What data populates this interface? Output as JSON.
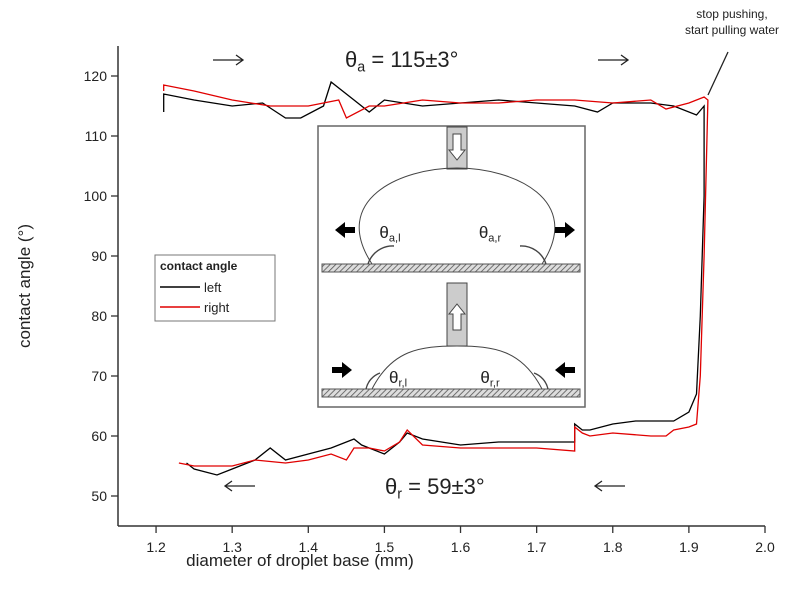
{
  "chart_data": {
    "type": "line",
    "x_label": "diameter of droplet base (mm)",
    "y_label": "contact angle (°)",
    "xlim": [
      1.15,
      2.0
    ],
    "ylim": [
      45,
      125
    ],
    "xticks": [
      1.2,
      1.3,
      1.4,
      1.5,
      1.6,
      1.7,
      1.8,
      1.9,
      {
        "value": 2,
        "label": "2.0"
      }
    ],
    "yticks": [
      50,
      60,
      70,
      80,
      90,
      100,
      110,
      120
    ],
    "legend": {
      "title": "contact angle",
      "position": "left"
    },
    "series": [
      {
        "name": "left",
        "color": "#000000",
        "x": [
          1.21,
          1.21,
          1.25,
          1.3,
          1.34,
          1.37,
          1.39,
          1.42,
          1.43,
          1.46,
          1.48,
          1.5,
          1.55,
          1.6,
          1.65,
          1.7,
          1.75,
          1.78,
          1.8,
          1.85,
          1.88,
          1.91,
          1.92,
          1.92,
          1.915,
          1.91,
          1.9,
          1.88,
          1.83,
          1.8,
          1.77,
          1.76,
          1.75,
          1.75,
          1.7,
          1.65,
          1.6,
          1.55,
          1.53,
          1.52,
          1.5,
          1.47,
          1.46,
          1.43,
          1.4,
          1.37,
          1.35,
          1.33,
          1.3,
          1.28,
          1.25,
          1.24
        ],
        "values": [
          114,
          117,
          116,
          115,
          115.5,
          113,
          113,
          115,
          119,
          116,
          114,
          116,
          115,
          115.5,
          116,
          115.5,
          115,
          114,
          115.5,
          115.5,
          115,
          113.5,
          115,
          100,
          80,
          67,
          64,
          62.5,
          62.5,
          62,
          61,
          61,
          62,
          59,
          59,
          59,
          58.5,
          59.5,
          60.5,
          59,
          57,
          58.5,
          59.5,
          58,
          57,
          56,
          58,
          56,
          54.5,
          53.5,
          54.5,
          55.5
        ]
      },
      {
        "name": "right",
        "color": "#e00000",
        "x": [
          1.21,
          1.21,
          1.25,
          1.3,
          1.35,
          1.4,
          1.44,
          1.45,
          1.48,
          1.5,
          1.55,
          1.6,
          1.65,
          1.7,
          1.75,
          1.8,
          1.85,
          1.87,
          1.9,
          1.92,
          1.925,
          1.92,
          1.915,
          1.91,
          1.9,
          1.88,
          1.87,
          1.85,
          1.8,
          1.77,
          1.76,
          1.75,
          1.75,
          1.7,
          1.6,
          1.55,
          1.53,
          1.52,
          1.5,
          1.48,
          1.46,
          1.45,
          1.43,
          1.4,
          1.37,
          1.33,
          1.3,
          1.25,
          1.23
        ],
        "values": [
          117.5,
          118.5,
          117.5,
          116,
          115,
          115,
          116,
          113,
          115,
          115,
          116,
          115.5,
          115.5,
          116,
          116,
          115.5,
          116,
          114.5,
          115.5,
          116.5,
          116,
          90,
          70,
          62,
          61.5,
          61,
          60,
          60,
          60.5,
          60,
          60.5,
          61.5,
          57.5,
          58,
          58,
          58.5,
          61,
          59,
          57.5,
          58,
          58,
          56,
          57,
          56,
          55.5,
          56,
          55,
          55,
          55.5
        ]
      }
    ],
    "annotations": {
      "advancing": {
        "symbol": "θ",
        "sub": "a",
        "rest": " = 115±3°"
      },
      "receding": {
        "symbol": "θ",
        "sub": "r",
        "rest": " = 59±3°"
      },
      "note": [
        "stop pushing,",
        "start pulling water"
      ]
    },
    "inset_labels": [
      {
        "symbol": "θ",
        "sub": "a,l"
      },
      {
        "symbol": "θ",
        "sub": "a,r"
      },
      {
        "symbol": "θ",
        "sub": "r,l"
      },
      {
        "symbol": "θ",
        "sub": "r,r"
      }
    ]
  }
}
